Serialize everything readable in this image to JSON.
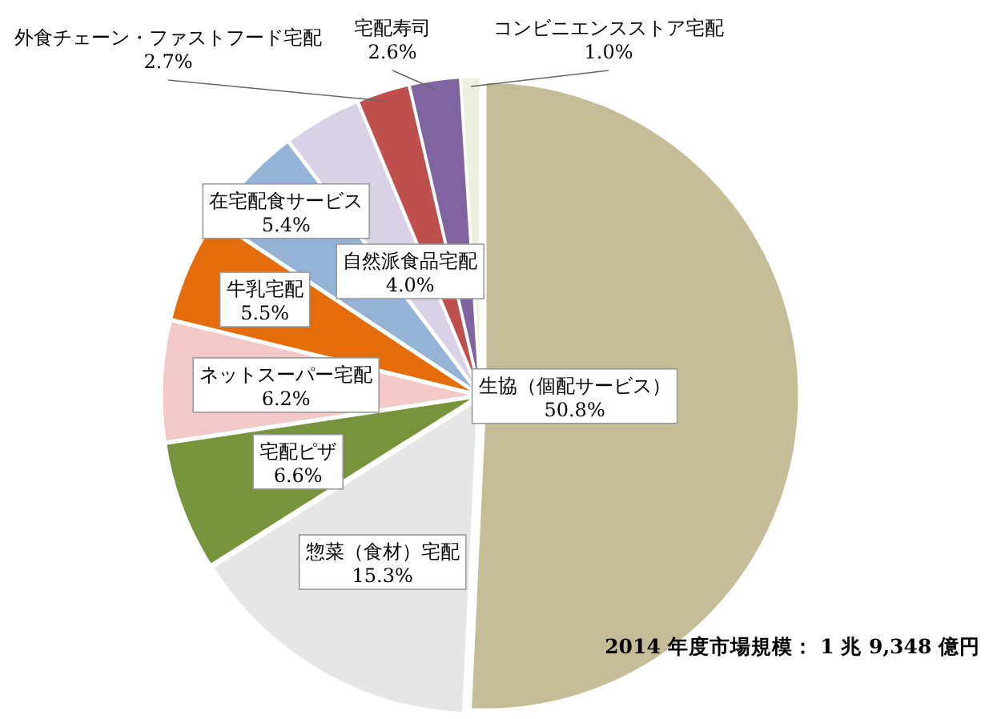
{
  "chart_data": {
    "type": "pie",
    "categories": [
      "生協（個配サービス）",
      "惣菜（食材）宅配",
      "宅配ピザ",
      "ネットスーパー宅配",
      "牛乳宅配",
      "在宅配食サービス",
      "自然派食品宅配",
      "外食チェーン・ファストフード宅配",
      "宅配寿司",
      "コンビニエンスストア宅配"
    ],
    "values": [
      50.8,
      15.3,
      6.6,
      6.2,
      5.5,
      5.4,
      4.0,
      2.7,
      2.6,
      1.0
    ],
    "value_labels": [
      "50.8%",
      "15.3%",
      "6.6%",
      "6.2%",
      "5.5%",
      "5.4%",
      "4.0%",
      "2.7%",
      "2.6%",
      "1.0%"
    ],
    "colors": [
      "#c4bd97",
      "#e6e6e6",
      "#77933c",
      "#f2c8c8",
      "#e46c0a",
      "#95b3d7",
      "#d9d2e6",
      "#c0504d",
      "#8064a2",
      "#ebf1de"
    ],
    "annotations": [
      "2014 年度市場規模： 1 兆 9,348 億円"
    ],
    "legend": false
  }
}
